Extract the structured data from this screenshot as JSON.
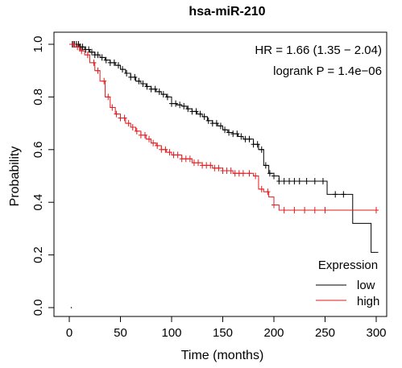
{
  "chart_data": {
    "type": "line",
    "title": "hsa-miR-210",
    "xlabel": "Time (months)",
    "ylabel": "Probability",
    "xlim": [
      0,
      300
    ],
    "ylim": [
      0,
      1
    ],
    "xticks": [
      0,
      50,
      100,
      150,
      200,
      250,
      300
    ],
    "yticks": [
      0.0,
      0.2,
      0.4,
      0.6,
      0.8,
      1.0
    ],
    "xtick_labels": [
      "0",
      "50",
      "100",
      "150",
      "200",
      "250",
      "300"
    ],
    "ytick_labels": [
      "0.0",
      "0.2",
      "0.4",
      "0.6",
      "0.8",
      "1.0"
    ],
    "annotations": [
      "HR = 1.66 (1.35 − 2.04)",
      "logrank P = 1.4e−06"
    ],
    "legend": {
      "title": "Expression",
      "position": "bottom-right"
    },
    "series": [
      {
        "name": "low",
        "color": "#000000",
        "points": [
          [
            0,
            1.0
          ],
          [
            5,
            1.0
          ],
          [
            10,
            0.99
          ],
          [
            15,
            0.98
          ],
          [
            20,
            0.97
          ],
          [
            25,
            0.96
          ],
          [
            30,
            0.95
          ],
          [
            35,
            0.94
          ],
          [
            40,
            0.93
          ],
          [
            45,
            0.92
          ],
          [
            50,
            0.905
          ],
          [
            55,
            0.89
          ],
          [
            60,
            0.875
          ],
          [
            65,
            0.86
          ],
          [
            70,
            0.85
          ],
          [
            75,
            0.84
          ],
          [
            80,
            0.83
          ],
          [
            85,
            0.82
          ],
          [
            90,
            0.81
          ],
          [
            95,
            0.8
          ],
          [
            100,
            0.775
          ],
          [
            105,
            0.77
          ],
          [
            110,
            0.765
          ],
          [
            115,
            0.755
          ],
          [
            120,
            0.745
          ],
          [
            125,
            0.735
          ],
          [
            130,
            0.725
          ],
          [
            135,
            0.71
          ],
          [
            140,
            0.7
          ],
          [
            145,
            0.69
          ],
          [
            150,
            0.675
          ],
          [
            155,
            0.665
          ],
          [
            160,
            0.66
          ],
          [
            165,
            0.65
          ],
          [
            170,
            0.64
          ],
          [
            175,
            0.64
          ],
          [
            180,
            0.62
          ],
          [
            185,
            0.6
          ],
          [
            190,
            0.54
          ],
          [
            195,
            0.51
          ],
          [
            200,
            0.5
          ],
          [
            205,
            0.48
          ],
          [
            210,
            0.48
          ],
          [
            250,
            0.48
          ],
          [
            252,
            0.43
          ],
          [
            275,
            0.43
          ],
          [
            277,
            0.32
          ],
          [
            293,
            0.32
          ],
          [
            295,
            0.21
          ],
          [
            302,
            0.21
          ]
        ],
        "censor_x": [
          3,
          5,
          7,
          9,
          11,
          13,
          16,
          19,
          22,
          25,
          28,
          32,
          36,
          40,
          44,
          48,
          52,
          56,
          60,
          64,
          68,
          72,
          76,
          80,
          84,
          88,
          92,
          96,
          100,
          104,
          108,
          112,
          116,
          120,
          124,
          128,
          132,
          136,
          140,
          144,
          148,
          152,
          156,
          160,
          164,
          168,
          172,
          176,
          180,
          184,
          188,
          192,
          196,
          200,
          205,
          210,
          215,
          220,
          225,
          232,
          240,
          248,
          260,
          268
        ]
      },
      {
        "name": "high",
        "color": "#e31a1c",
        "points": [
          [
            0,
            1.0
          ],
          [
            5,
            0.99
          ],
          [
            10,
            0.975
          ],
          [
            15,
            0.96
          ],
          [
            20,
            0.93
          ],
          [
            25,
            0.9
          ],
          [
            30,
            0.86
          ],
          [
            35,
            0.8
          ],
          [
            40,
            0.76
          ],
          [
            45,
            0.735
          ],
          [
            50,
            0.72
          ],
          [
            55,
            0.7
          ],
          [
            60,
            0.685
          ],
          [
            65,
            0.67
          ],
          [
            70,
            0.655
          ],
          [
            75,
            0.64
          ],
          [
            80,
            0.625
          ],
          [
            85,
            0.615
          ],
          [
            90,
            0.6
          ],
          [
            95,
            0.59
          ],
          [
            100,
            0.58
          ],
          [
            110,
            0.565
          ],
          [
            120,
            0.55
          ],
          [
            130,
            0.54
          ],
          [
            140,
            0.53
          ],
          [
            150,
            0.52
          ],
          [
            160,
            0.51
          ],
          [
            170,
            0.51
          ],
          [
            180,
            0.5
          ],
          [
            185,
            0.45
          ],
          [
            190,
            0.44
          ],
          [
            195,
            0.42
          ],
          [
            200,
            0.39
          ],
          [
            205,
            0.37
          ],
          [
            302,
            0.37
          ]
        ],
        "censor_x": [
          4,
          8,
          12,
          18,
          24,
          28,
          34,
          38,
          42,
          46,
          50,
          54,
          58,
          62,
          66,
          70,
          74,
          78,
          82,
          86,
          90,
          94,
          98,
          102,
          106,
          110,
          114,
          118,
          122,
          126,
          130,
          134,
          138,
          142,
          146,
          150,
          154,
          158,
          162,
          166,
          170,
          176,
          182,
          188,
          194,
          200,
          210,
          220,
          230,
          240,
          250,
          300
        ]
      }
    ]
  }
}
